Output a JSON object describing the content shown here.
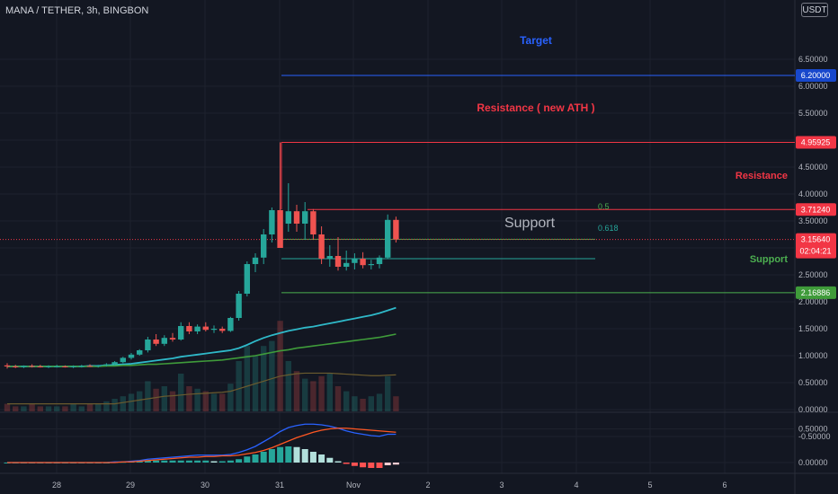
{
  "header": {
    "symbol": "MANA / TETHER, 3h, BINGBON",
    "currency_button": "USDT"
  },
  "price_axis": {
    "ticks": [
      "6.50000",
      "6.00000",
      "5.50000",
      "5.00000",
      "4.50000",
      "4.00000",
      "3.50000",
      "3.00000",
      "2.50000",
      "2.00000",
      "1.50000",
      "1.00000",
      "0.50000",
      "0.00000",
      "-0.50000"
    ],
    "tags": [
      {
        "label": "6.20000",
        "color": "#1848cc"
      },
      {
        "label": "4.95925",
        "color": "#f23645"
      },
      {
        "label": "3.71240",
        "color": "#f23645"
      },
      {
        "label": "3.15640",
        "color": "#f23645",
        "sub": "02:04:21"
      },
      {
        "label": "2.16886",
        "color": "#3f9b3a"
      }
    ]
  },
  "macd_axis": {
    "ticks": [
      "0.50000",
      "0.00000"
    ]
  },
  "time_axis": {
    "ticks": [
      "28",
      "29",
      "30",
      "31",
      "Nov",
      "2",
      "3",
      "4",
      "5",
      "6"
    ]
  },
  "annotations": {
    "target": "Target",
    "resistance_ath": "Resistance ( new ATH )",
    "resistance": "Resistance",
    "support_mid": "Support",
    "support_low": "Support",
    "fib_05": "0.5",
    "fib_0618": "0.618"
  },
  "chart_data": {
    "type": "candlestick",
    "symbol": "MANA / TETHER",
    "interval": "3h",
    "exchange": "BINGBON",
    "ylim": [
      -0.5,
      7.0
    ],
    "candles": [
      {
        "o": 0.82,
        "h": 0.86,
        "l": 0.76,
        "c": 0.8
      },
      {
        "o": 0.8,
        "h": 0.83,
        "l": 0.77,
        "c": 0.79
      },
      {
        "o": 0.79,
        "h": 0.82,
        "l": 0.77,
        "c": 0.81
      },
      {
        "o": 0.81,
        "h": 0.84,
        "l": 0.78,
        "c": 0.8
      },
      {
        "o": 0.8,
        "h": 0.83,
        "l": 0.78,
        "c": 0.79
      },
      {
        "o": 0.79,
        "h": 0.82,
        "l": 0.77,
        "c": 0.8
      },
      {
        "o": 0.8,
        "h": 0.83,
        "l": 0.78,
        "c": 0.8
      },
      {
        "o": 0.8,
        "h": 0.82,
        "l": 0.78,
        "c": 0.79
      },
      {
        "o": 0.79,
        "h": 0.82,
        "l": 0.77,
        "c": 0.8
      },
      {
        "o": 0.8,
        "h": 0.83,
        "l": 0.78,
        "c": 0.81
      },
      {
        "o": 0.81,
        "h": 0.84,
        "l": 0.79,
        "c": 0.8
      },
      {
        "o": 0.8,
        "h": 0.83,
        "l": 0.78,
        "c": 0.82
      },
      {
        "o": 0.82,
        "h": 0.86,
        "l": 0.8,
        "c": 0.84
      },
      {
        "o": 0.84,
        "h": 0.9,
        "l": 0.82,
        "c": 0.88
      },
      {
        "o": 0.88,
        "h": 0.98,
        "l": 0.86,
        "c": 0.96
      },
      {
        "o": 0.96,
        "h": 1.05,
        "l": 0.93,
        "c": 1.02
      },
      {
        "o": 1.02,
        "h": 1.12,
        "l": 1.0,
        "c": 1.1
      },
      {
        "o": 1.1,
        "h": 1.35,
        "l": 1.06,
        "c": 1.3
      },
      {
        "o": 1.3,
        "h": 1.4,
        "l": 1.18,
        "c": 1.22
      },
      {
        "o": 1.22,
        "h": 1.38,
        "l": 1.18,
        "c": 1.33
      },
      {
        "o": 1.33,
        "h": 1.42,
        "l": 1.26,
        "c": 1.3
      },
      {
        "o": 1.3,
        "h": 1.62,
        "l": 1.28,
        "c": 1.55
      },
      {
        "o": 1.55,
        "h": 1.62,
        "l": 1.4,
        "c": 1.45
      },
      {
        "o": 1.45,
        "h": 1.58,
        "l": 1.4,
        "c": 1.54
      },
      {
        "o": 1.54,
        "h": 1.62,
        "l": 1.45,
        "c": 1.48
      },
      {
        "o": 1.48,
        "h": 1.56,
        "l": 1.42,
        "c": 1.5
      },
      {
        "o": 1.5,
        "h": 1.54,
        "l": 1.42,
        "c": 1.46
      },
      {
        "o": 1.46,
        "h": 1.72,
        "l": 1.44,
        "c": 1.7
      },
      {
        "o": 1.7,
        "h": 2.2,
        "l": 1.65,
        "c": 2.15
      },
      {
        "o": 2.15,
        "h": 2.75,
        "l": 2.1,
        "c": 2.7
      },
      {
        "o": 2.7,
        "h": 2.9,
        "l": 2.55,
        "c": 2.82
      },
      {
        "o": 2.82,
        "h": 3.35,
        "l": 2.7,
        "c": 3.25
      },
      {
        "o": 3.25,
        "h": 3.75,
        "l": 3.1,
        "c": 3.7
      },
      {
        "o": 3.7,
        "h": 4.96,
        "l": 3.05,
        "c": 3.0
      },
      {
        "o": 3.45,
        "h": 4.2,
        "l": 3.3,
        "c": 3.68
      },
      {
        "o": 3.68,
        "h": 3.8,
        "l": 3.3,
        "c": 3.45
      },
      {
        "o": 3.45,
        "h": 3.85,
        "l": 3.15,
        "c": 3.68
      },
      {
        "o": 3.68,
        "h": 3.72,
        "l": 3.15,
        "c": 3.25
      },
      {
        "o": 3.25,
        "h": 3.4,
        "l": 2.7,
        "c": 2.8
      },
      {
        "o": 2.8,
        "h": 3.05,
        "l": 2.65,
        "c": 2.85
      },
      {
        "o": 2.85,
        "h": 3.2,
        "l": 2.58,
        "c": 2.65
      },
      {
        "o": 2.65,
        "h": 2.95,
        "l": 2.58,
        "c": 2.72
      },
      {
        "o": 2.72,
        "h": 2.9,
        "l": 2.6,
        "c": 2.8
      },
      {
        "o": 2.8,
        "h": 2.92,
        "l": 2.62,
        "c": 2.68
      },
      {
        "o": 2.68,
        "h": 2.78,
        "l": 2.6,
        "c": 2.7
      },
      {
        "o": 2.7,
        "h": 2.86,
        "l": 2.62,
        "c": 2.82
      },
      {
        "o": 2.82,
        "h": 3.62,
        "l": 2.8,
        "c": 3.52
      },
      {
        "o": 3.52,
        "h": 3.58,
        "l": 3.1,
        "c": 3.16
      }
    ],
    "ma_fast": [
      0.8,
      0.8,
      0.8,
      0.8,
      0.8,
      0.8,
      0.8,
      0.8,
      0.8,
      0.8,
      0.81,
      0.81,
      0.82,
      0.83,
      0.84,
      0.85,
      0.87,
      0.89,
      0.91,
      0.93,
      0.95,
      0.98,
      1.0,
      1.02,
      1.04,
      1.06,
      1.08,
      1.1,
      1.14,
      1.2,
      1.27,
      1.33,
      1.38,
      1.42,
      1.46,
      1.49,
      1.52,
      1.54,
      1.57,
      1.6,
      1.63,
      1.66,
      1.69,
      1.72,
      1.75,
      1.79,
      1.84,
      1.89
    ],
    "ma_slow": [
      0.8,
      0.8,
      0.8,
      0.8,
      0.8,
      0.8,
      0.8,
      0.8,
      0.8,
      0.8,
      0.8,
      0.8,
      0.81,
      0.81,
      0.82,
      0.82,
      0.83,
      0.84,
      0.84,
      0.85,
      0.86,
      0.87,
      0.88,
      0.89,
      0.9,
      0.91,
      0.92,
      0.94,
      0.96,
      0.98,
      1.0,
      1.03,
      1.06,
      1.09,
      1.11,
      1.14,
      1.16,
      1.18,
      1.2,
      1.22,
      1.24,
      1.26,
      1.28,
      1.3,
      1.32,
      1.34,
      1.37,
      1.4
    ],
    "levels": [
      {
        "name": "Target",
        "value": 6.2
      },
      {
        "name": "Resistance ( new ATH )",
        "value": 4.95925
      },
      {
        "name": "Resistance",
        "value": 3.7124
      },
      {
        "name": "0.5",
        "value": 3.16
      },
      {
        "name": "0.618",
        "value": 2.8
      },
      {
        "name": "Support",
        "value": 2.16886
      }
    ],
    "macd": {
      "ylim": [
        -0.25,
        0.75
      ],
      "macd_line": [
        0,
        0,
        0,
        0,
        0,
        0,
        0,
        0,
        0,
        0,
        0,
        0,
        0,
        0.01,
        0.01,
        0.02,
        0.03,
        0.05,
        0.06,
        0.07,
        0.08,
        0.09,
        0.1,
        0.11,
        0.11,
        0.11,
        0.11,
        0.12,
        0.15,
        0.19,
        0.24,
        0.31,
        0.38,
        0.46,
        0.52,
        0.55,
        0.57,
        0.57,
        0.56,
        0.54,
        0.51,
        0.47,
        0.44,
        0.42,
        0.4,
        0.39,
        0.42,
        0.42
      ],
      "signal_line": [
        0,
        0,
        0,
        0,
        0,
        0,
        0,
        0,
        0,
        0,
        0,
        0,
        0,
        0,
        0.01,
        0.01,
        0.02,
        0.03,
        0.04,
        0.05,
        0.06,
        0.07,
        0.08,
        0.08,
        0.09,
        0.09,
        0.1,
        0.1,
        0.11,
        0.13,
        0.15,
        0.18,
        0.22,
        0.27,
        0.32,
        0.37,
        0.41,
        0.45,
        0.48,
        0.5,
        0.51,
        0.51,
        0.5,
        0.49,
        0.48,
        0.47,
        0.46,
        0.45
      ],
      "histogram": [
        0,
        0,
        0,
        0,
        0,
        0,
        0,
        0,
        0,
        0,
        0,
        0,
        0,
        0.01,
        0.01,
        0.02,
        0.02,
        0.03,
        0.03,
        0.03,
        0.03,
        0.03,
        0.03,
        0.03,
        0.03,
        0.02,
        0.02,
        0.03,
        0.05,
        0.09,
        0.12,
        0.16,
        0.2,
        0.23,
        0.24,
        0.23,
        0.2,
        0.16,
        0.12,
        0.07,
        0.02,
        -0.02,
        -0.05,
        -0.07,
        -0.08,
        -0.08,
        -0.04,
        -0.03
      ]
    },
    "volume": [
      0.3,
      0.2,
      0.2,
      0.3,
      0.2,
      0.2,
      0.2,
      0.2,
      0.3,
      0.2,
      0.3,
      0.3,
      0.4,
      0.5,
      0.6,
      0.7,
      0.8,
      1.2,
      0.9,
      1.0,
      0.8,
      1.5,
      1.0,
      0.9,
      0.8,
      0.7,
      0.7,
      1.1,
      2.0,
      2.6,
      2.2,
      2.6,
      2.8,
      3.6,
      2.0,
      1.6,
      1.3,
      1.2,
      1.4,
      1.5,
      1.0,
      0.8,
      0.6,
      0.5,
      0.6,
      0.7,
      1.4,
      0.6
    ],
    "volume_ma": [
      0.3,
      0.3,
      0.3,
      0.3,
      0.3,
      0.3,
      0.3,
      0.3,
      0.3,
      0.3,
      0.3,
      0.3,
      0.3,
      0.3,
      0.35,
      0.4,
      0.45,
      0.5,
      0.55,
      0.6,
      0.62,
      0.65,
      0.68,
      0.7,
      0.72,
      0.74,
      0.76,
      0.8,
      0.9,
      1.0,
      1.1,
      1.2,
      1.3,
      1.4,
      1.45,
      1.5,
      1.52,
      1.52,
      1.52,
      1.52,
      1.5,
      1.48,
      1.46,
      1.44,
      1.42,
      1.42,
      1.44,
      1.45
    ]
  },
  "colors": {
    "bg": "#131722",
    "up": "#26a69a",
    "down": "#ef5350",
    "grid": "#1e222d",
    "ma_fast": "#2fb9c9",
    "ma_slow": "#3f9b3a",
    "target": "#2962ff",
    "resistance": "#f23645",
    "fib": "#4caf50",
    "support": "#4caf50",
    "macd": "#2962ff",
    "signal": "#ff5722"
  }
}
